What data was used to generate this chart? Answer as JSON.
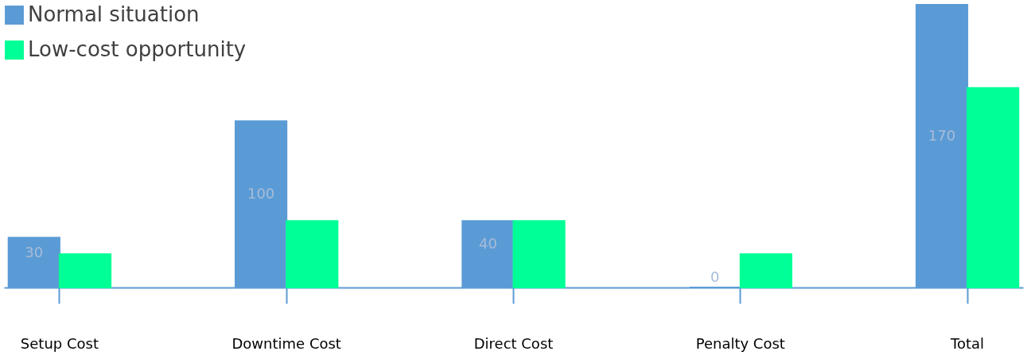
{
  "chart_data": {
    "type": "bar",
    "categories": [
      "Setup Cost",
      "Downtime Cost",
      "Direct Cost",
      "Penalty Cost",
      "Total"
    ],
    "series": [
      {
        "name": "Normal situation",
        "color": "#5b9bd5",
        "values": [
          30,
          100,
          40,
          0,
          170
        ],
        "value_labels": [
          "30",
          "100",
          "40",
          "0",
          "170"
        ]
      },
      {
        "name": "Low-cost opportunity",
        "color": "#00ff96",
        "values": [
          20,
          40,
          40,
          20,
          120
        ]
      }
    ],
    "ylim": [
      0,
      170
    ],
    "tick_labels": "x",
    "grid": false,
    "legend": "top left"
  }
}
